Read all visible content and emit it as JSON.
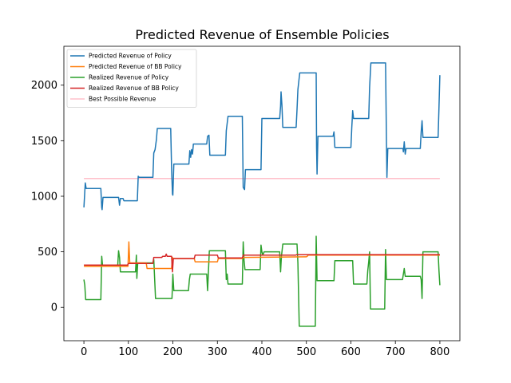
{
  "chart_data": {
    "type": "line",
    "title": "Predicted Revenue of Ensemble Policies",
    "xlabel": "",
    "ylabel": "",
    "xlim": [
      -45,
      845
    ],
    "ylim": [
      -300,
      2350
    ],
    "x_ticks": [
      0,
      100,
      200,
      300,
      400,
      500,
      600,
      700,
      800
    ],
    "y_ticks": [
      0,
      500,
      1000,
      1500,
      2000
    ],
    "grid": false,
    "legend_position": "top-left",
    "series": [
      {
        "name": "Predicted Revenue of Policy",
        "color": "#1f77b4",
        "points": [
          [
            0,
            900
          ],
          [
            3,
            1120
          ],
          [
            5,
            1070
          ],
          [
            38,
            1070
          ],
          [
            40,
            900
          ],
          [
            41,
            880
          ],
          [
            43,
            990
          ],
          [
            78,
            990
          ],
          [
            80,
            920
          ],
          [
            82,
            980
          ],
          [
            88,
            980
          ],
          [
            90,
            960
          ],
          [
            120,
            960
          ],
          [
            122,
            1180
          ],
          [
            124,
            1170
          ],
          [
            155,
            1170
          ],
          [
            157,
            1390
          ],
          [
            160,
            1420
          ],
          [
            163,
            1510
          ],
          [
            165,
            1610
          ],
          [
            195,
            1610
          ],
          [
            197,
            1250
          ],
          [
            199,
            1020
          ],
          [
            200,
            1010
          ],
          [
            202,
            1290
          ],
          [
            236,
            1290
          ],
          [
            238,
            1410
          ],
          [
            240,
            1350
          ],
          [
            242,
            1420
          ],
          [
            244,
            1380
          ],
          [
            246,
            1470
          ],
          [
            276,
            1470
          ],
          [
            278,
            1540
          ],
          [
            281,
            1550
          ],
          [
            283,
            1370
          ],
          [
            318,
            1370
          ],
          [
            320,
            1590
          ],
          [
            324,
            1720
          ],
          [
            356,
            1720
          ],
          [
            358,
            1080
          ],
          [
            361,
            1060
          ],
          [
            363,
            1240
          ],
          [
            398,
            1240
          ],
          [
            400,
            1700
          ],
          [
            440,
            1700
          ],
          [
            442,
            1810
          ],
          [
            443,
            1940
          ],
          [
            445,
            1820
          ],
          [
            447,
            1620
          ],
          [
            477,
            1620
          ],
          [
            479,
            1780
          ],
          [
            481,
            1960
          ],
          [
            485,
            2110
          ],
          [
            522,
            2110
          ],
          [
            523,
            1440
          ],
          [
            524,
            1200
          ],
          [
            526,
            1540
          ],
          [
            558,
            1540
          ],
          [
            560,
            1540
          ],
          [
            562,
            1580
          ],
          [
            564,
            1440
          ],
          [
            600,
            1440
          ],
          [
            602,
            1620
          ],
          [
            604,
            1770
          ],
          [
            606,
            1700
          ],
          [
            640,
            1700
          ],
          [
            642,
            1980
          ],
          [
            645,
            2200
          ],
          [
            678,
            2200
          ],
          [
            680,
            1500
          ],
          [
            681,
            1170
          ],
          [
            683,
            1430
          ],
          [
            717,
            1430
          ],
          [
            718,
            1400
          ],
          [
            720,
            1490
          ],
          [
            722,
            1380
          ],
          [
            724,
            1430
          ],
          [
            756,
            1430
          ],
          [
            758,
            1580
          ],
          [
            760,
            1680
          ],
          [
            762,
            1530
          ],
          [
            796,
            1530
          ],
          [
            798,
            1800
          ],
          [
            800,
            2090
          ]
        ]
      },
      {
        "name": "Predicted Revenue of BB Policy",
        "color": "#ff7f0e",
        "points": [
          [
            0,
            370
          ],
          [
            99,
            370
          ],
          [
            101,
            590
          ],
          [
            103,
            400
          ],
          [
            140,
            400
          ],
          [
            142,
            350
          ],
          [
            197,
            350
          ],
          [
            199,
            450
          ],
          [
            200,
            440
          ],
          [
            248,
            440
          ],
          [
            250,
            410
          ],
          [
            300,
            410
          ],
          [
            302,
            440
          ],
          [
            356,
            440
          ],
          [
            358,
            450
          ],
          [
            500,
            455
          ],
          [
            502,
            460
          ],
          [
            504,
            470
          ],
          [
            798,
            470
          ],
          [
            800,
            470
          ]
        ]
      },
      {
        "name": "Realized Revenue of Policy",
        "color": "#2ca02c",
        "points": [
          [
            0,
            250
          ],
          [
            2,
            200
          ],
          [
            4,
            70
          ],
          [
            38,
            70
          ],
          [
            40,
            460
          ],
          [
            42,
            370
          ],
          [
            76,
            370
          ],
          [
            78,
            510
          ],
          [
            80,
            450
          ],
          [
            82,
            320
          ],
          [
            116,
            320
          ],
          [
            118,
            470
          ],
          [
            119,
            260
          ],
          [
            121,
            400
          ],
          [
            155,
            400
          ],
          [
            157,
            430
          ],
          [
            161,
            80
          ],
          [
            198,
            80
          ],
          [
            200,
            300
          ],
          [
            202,
            150
          ],
          [
            235,
            150
          ],
          [
            237,
            250
          ],
          [
            239,
            300
          ],
          [
            276,
            300
          ],
          [
            278,
            150
          ],
          [
            282,
            510
          ],
          [
            318,
            510
          ],
          [
            320,
            250
          ],
          [
            322,
            300
          ],
          [
            324,
            210
          ],
          [
            356,
            210
          ],
          [
            358,
            590
          ],
          [
            360,
            420
          ],
          [
            362,
            340
          ],
          [
            396,
            340
          ],
          [
            398,
            560
          ],
          [
            400,
            500
          ],
          [
            402,
            470
          ],
          [
            405,
            500
          ],
          [
            440,
            500
          ],
          [
            442,
            320
          ],
          [
            444,
            460
          ],
          [
            447,
            570
          ],
          [
            479,
            570
          ],
          [
            481,
            400
          ],
          [
            484,
            -170
          ],
          [
            520,
            -170
          ],
          [
            522,
            640
          ],
          [
            524,
            240
          ],
          [
            562,
            240
          ],
          [
            564,
            420
          ],
          [
            604,
            420
          ],
          [
            606,
            210
          ],
          [
            636,
            210
          ],
          [
            638,
            330
          ],
          [
            640,
            410
          ],
          [
            642,
            500
          ],
          [
            644,
            -15
          ],
          [
            676,
            -15
          ],
          [
            678,
            520
          ],
          [
            680,
            250
          ],
          [
            716,
            250
          ],
          [
            718,
            300
          ],
          [
            720,
            350
          ],
          [
            722,
            280
          ],
          [
            756,
            280
          ],
          [
            758,
            250
          ],
          [
            760,
            80
          ],
          [
            762,
            500
          ],
          [
            796,
            500
          ],
          [
            798,
            330
          ],
          [
            800,
            200
          ]
        ]
      },
      {
        "name": "Realized Revenue of BB Policy",
        "color": "#d62728",
        "points": [
          [
            0,
            380
          ],
          [
            98,
            380
          ],
          [
            100,
            395
          ],
          [
            155,
            395
          ],
          [
            157,
            450
          ],
          [
            175,
            450
          ],
          [
            177,
            460
          ],
          [
            183,
            460
          ],
          [
            185,
            480
          ],
          [
            187,
            460
          ],
          [
            197,
            460
          ],
          [
            199,
            320
          ],
          [
            201,
            440
          ],
          [
            248,
            440
          ],
          [
            250,
            470
          ],
          [
            300,
            470
          ],
          [
            302,
            445
          ],
          [
            356,
            445
          ],
          [
            358,
            470
          ],
          [
            476,
            470
          ],
          [
            478,
            475
          ],
          [
            800,
            475
          ]
        ]
      },
      {
        "name": "Best Possible Revenue",
        "color": "#ffc0cb",
        "points": [
          [
            0,
            1160
          ],
          [
            800,
            1160
          ]
        ]
      }
    ]
  }
}
